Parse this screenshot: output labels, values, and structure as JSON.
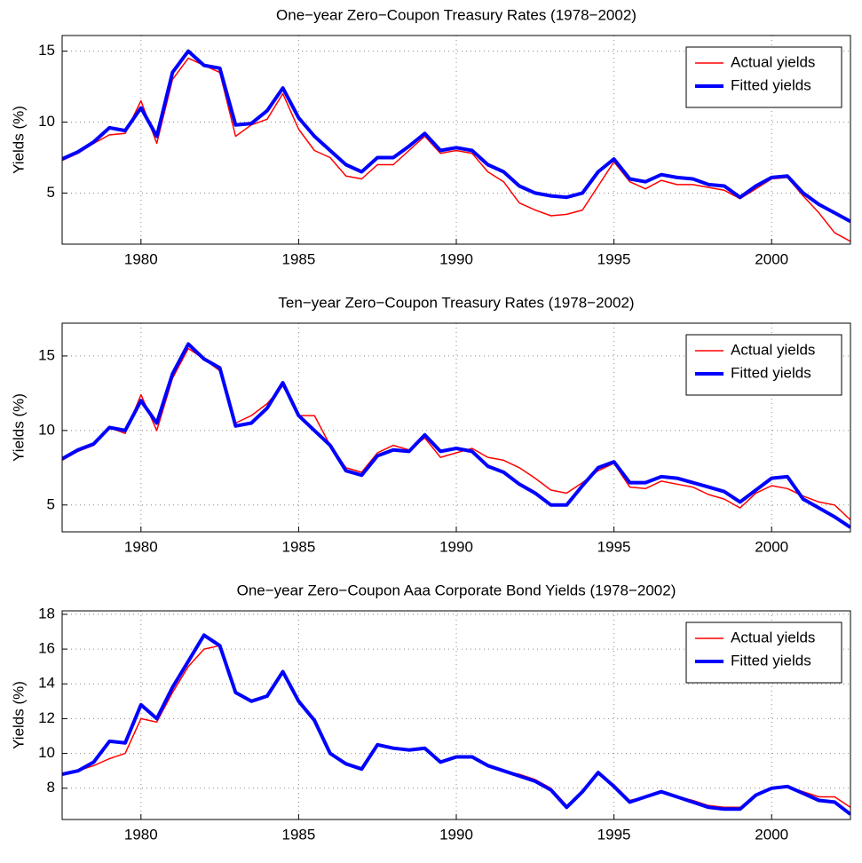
{
  "chart_data": [
    {
      "type": "line",
      "title": "One−year Zero−Coupon Treasury Rates (1978−2002)",
      "y_label": "Yields (%)",
      "x": [
        1977.5,
        1978,
        1978.5,
        1979,
        1979.5,
        1980,
        1980.5,
        1981,
        1981.5,
        1982,
        1982.5,
        1983,
        1983.5,
        1984,
        1984.5,
        1985,
        1985.5,
        1986,
        1986.5,
        1987,
        1987.5,
        1988,
        1988.5,
        1989,
        1989.5,
        1990,
        1990.5,
        1991,
        1991.5,
        1992,
        1992.5,
        1993,
        1993.5,
        1994,
        1994.5,
        1995,
        1995.5,
        1996,
        1996.5,
        1997,
        1997.5,
        1998,
        1998.5,
        1999,
        1999.5,
        2000,
        2000.5,
        2001,
        2001.5,
        2002,
        2002.5
      ],
      "series": [
        {
          "name": "Actual yields",
          "color": "#ff0000",
          "values": [
            7.3,
            7.8,
            8.5,
            9.1,
            9.2,
            11.5,
            8.5,
            13,
            14.5,
            14.0,
            13.5,
            9.0,
            9.8,
            10.2,
            12.0,
            9.5,
            8.0,
            7.5,
            6.2,
            6.0,
            7.0,
            7.0,
            8.0,
            9.0,
            7.8,
            8.0,
            7.8,
            6.5,
            5.8,
            4.3,
            3.8,
            3.4,
            3.5,
            3.8,
            5.5,
            7.2,
            5.8,
            5.3,
            5.9,
            5.6,
            5.6,
            5.4,
            5.2,
            4.6,
            5.3,
            6.0,
            6.1,
            4.8,
            3.6,
            2.2,
            1.6
          ]
        },
        {
          "name": "Fitted yields",
          "color": "#0000ff",
          "values": [
            7.4,
            7.9,
            8.6,
            9.6,
            9.4,
            11.0,
            9.0,
            13.5,
            15.0,
            14.0,
            13.8,
            9.8,
            9.9,
            10.8,
            12.4,
            10.3,
            9.0,
            8.0,
            7.0,
            6.5,
            7.5,
            7.5,
            8.3,
            9.2,
            8.0,
            8.2,
            8.0,
            7.0,
            6.5,
            5.5,
            5.0,
            4.8,
            4.7,
            5.0,
            6.5,
            7.4,
            6.0,
            5.8,
            6.3,
            6.1,
            6.0,
            5.6,
            5.5,
            4.7,
            5.5,
            6.1,
            6.2,
            5.0,
            4.2,
            3.6,
            3.0
          ]
        }
      ],
      "xlim": [
        1977.5,
        2002.5
      ],
      "xticks": [
        1980,
        1985,
        1990,
        1995,
        2000
      ],
      "ylim": [
        1.4,
        16.1
      ],
      "yticks": [
        5,
        10,
        15
      ],
      "grid": true,
      "legend": "upper right"
    },
    {
      "type": "line",
      "title": "Ten−year Zero−Coupon Treasury Rates (1978−2002)",
      "y_label": "Yields (%)",
      "x": [
        1977.5,
        1978,
        1978.5,
        1979,
        1979.5,
        1980,
        1980.5,
        1981,
        1981.5,
        1982,
        1982.5,
        1983,
        1983.5,
        1984,
        1984.5,
        1985,
        1985.5,
        1986,
        1986.5,
        1987,
        1987.5,
        1988,
        1988.5,
        1989,
        1989.5,
        1990,
        1990.5,
        1991,
        1991.5,
        1992,
        1992.5,
        1993,
        1993.5,
        1994,
        1994.5,
        1995,
        1995.5,
        1996,
        1996.5,
        1997,
        1997.5,
        1998,
        1998.5,
        1999,
        1999.5,
        2000,
        2000.5,
        2001,
        2001.5,
        2002,
        2002.5
      ],
      "series": [
        {
          "name": "Actual yields",
          "color": "#ff0000",
          "values": [
            8.0,
            8.6,
            9.0,
            10.2,
            9.8,
            12.4,
            10.0,
            13.5,
            15.5,
            14.8,
            14.0,
            10.5,
            11.0,
            11.8,
            13.0,
            11.0,
            11.0,
            9.0,
            7.5,
            7.2,
            8.5,
            9.0,
            8.7,
            9.5,
            8.2,
            8.5,
            8.8,
            8.2,
            8.0,
            7.5,
            6.8,
            6.0,
            5.8,
            6.5,
            7.3,
            7.8,
            6.2,
            6.1,
            6.6,
            6.4,
            6.2,
            5.7,
            5.4,
            4.8,
            5.8,
            6.3,
            6.1,
            5.6,
            5.2,
            5.0,
            4.0
          ]
        },
        {
          "name": "Fitted yields",
          "color": "#0000ff",
          "values": [
            8.1,
            8.7,
            9.1,
            10.2,
            10.0,
            12.0,
            10.5,
            13.8,
            15.8,
            14.8,
            14.2,
            10.3,
            10.5,
            11.5,
            13.2,
            11.0,
            10.0,
            9.0,
            7.3,
            7.0,
            8.3,
            8.7,
            8.6,
            9.7,
            8.6,
            8.8,
            8.6,
            7.6,
            7.2,
            6.4,
            5.8,
            5.0,
            5.0,
            6.3,
            7.5,
            7.9,
            6.5,
            6.5,
            6.9,
            6.8,
            6.5,
            6.2,
            5.9,
            5.2,
            6.0,
            6.8,
            6.9,
            5.4,
            4.8,
            4.2,
            3.5
          ]
        }
      ],
      "xlim": [
        1977.5,
        2002.5
      ],
      "xticks": [
        1980,
        1985,
        1990,
        1995,
        2000
      ],
      "ylim": [
        3.2,
        17.2
      ],
      "yticks": [
        5,
        10,
        15
      ],
      "grid": true,
      "legend": "upper right"
    },
    {
      "type": "line",
      "title": "One−year Zero−Coupon Aaa Corporate Bond Yields (1978−2002)",
      "y_label": "Yields (%)",
      "x": [
        1977.5,
        1978,
        1978.5,
        1979,
        1979.5,
        1980,
        1980.5,
        1981,
        1981.5,
        1982,
        1982.5,
        1983,
        1983.5,
        1984,
        1984.5,
        1985,
        1985.5,
        1986,
        1986.5,
        1987,
        1987.5,
        1988,
        1988.5,
        1989,
        1989.5,
        1990,
        1990.5,
        1991,
        1991.5,
        1992,
        1992.5,
        1993,
        1993.5,
        1994,
        1994.5,
        1995,
        1995.5,
        1996,
        1996.5,
        1997,
        1997.5,
        1998,
        1998.5,
        1999,
        1999.5,
        2000,
        2000.5,
        2001,
        2001.5,
        2002,
        2002.5
      ],
      "series": [
        {
          "name": "Actual yields",
          "color": "#ff0000",
          "values": [
            8.8,
            9.0,
            9.3,
            9.7,
            10.0,
            12.0,
            11.8,
            13.5,
            15.0,
            16.0,
            16.2,
            13.5,
            13.0,
            13.3,
            14.6,
            13.0,
            11.8,
            10.0,
            9.4,
            9.1,
            10.5,
            10.3,
            10.2,
            10.3,
            9.5,
            9.8,
            9.8,
            9.3,
            9.0,
            8.8,
            8.5,
            8.0,
            7.0,
            7.8,
            8.8,
            8.2,
            7.3,
            7.5,
            7.8,
            7.5,
            7.3,
            7.0,
            6.9,
            6.9,
            7.6,
            8.0,
            8.1,
            7.8,
            7.5,
            7.5,
            6.9
          ]
        },
        {
          "name": "Fitted yields",
          "color": "#0000ff",
          "values": [
            8.8,
            9.0,
            9.5,
            10.7,
            10.6,
            12.8,
            12.0,
            13.8,
            15.3,
            16.8,
            16.2,
            13.5,
            13.0,
            13.3,
            14.7,
            13.0,
            11.9,
            10.0,
            9.4,
            9.1,
            10.5,
            10.3,
            10.2,
            10.3,
            9.5,
            9.8,
            9.8,
            9.3,
            9.0,
            8.7,
            8.4,
            7.9,
            6.9,
            7.8,
            8.9,
            8.1,
            7.2,
            7.5,
            7.8,
            7.5,
            7.2,
            6.9,
            6.8,
            6.8,
            7.6,
            8.0,
            8.1,
            7.7,
            7.3,
            7.2,
            6.5
          ]
        }
      ],
      "xlim": [
        1977.5,
        2002.5
      ],
      "xticks": [
        1980,
        1985,
        1990,
        1995,
        2000
      ],
      "ylim": [
        6.2,
        18.2
      ],
      "yticks": [
        8,
        10,
        12,
        14,
        16,
        18
      ],
      "grid": true,
      "legend": "upper right"
    }
  ]
}
